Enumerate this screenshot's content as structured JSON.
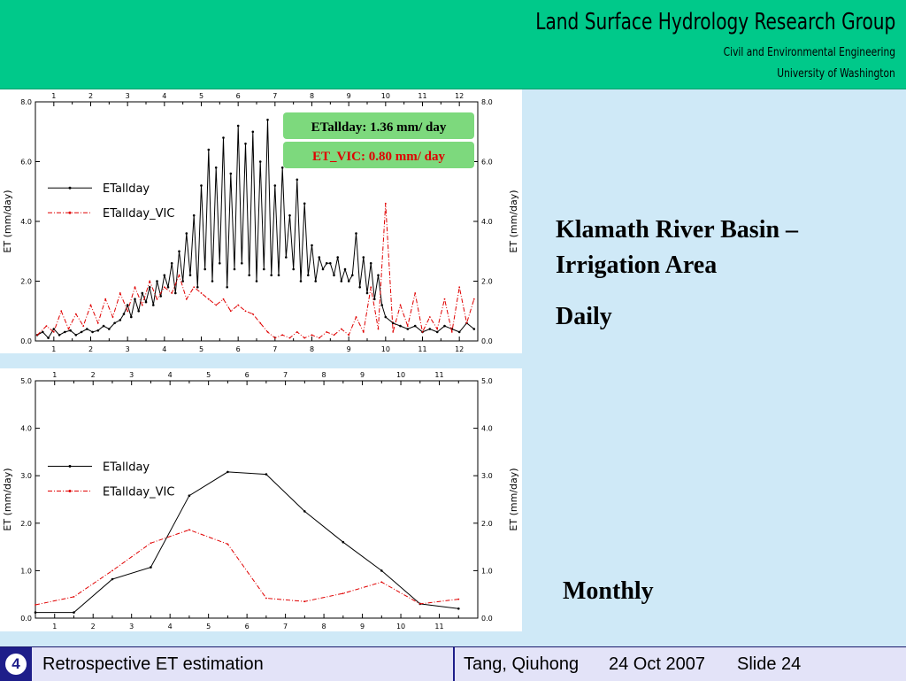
{
  "header": {
    "title": "Land Surface Hydrology Research Group",
    "subtitle1": "Civil and Environmental Engineering",
    "subtitle2": "University of Washington"
  },
  "side": {
    "basin_title": "Klamath River Basin – Irrigation Area",
    "daily_label": "Daily",
    "monthly_label": "Monthly"
  },
  "annotations": {
    "etallday": "ETallday: 1.36 mm/ day",
    "et_vic": "ET_VIC: 0.80 mm/ day"
  },
  "footer": {
    "slide_icon": "4",
    "title": "Retrospective ET estimation",
    "author": "Tang, Qiuhong",
    "date": "24 Oct 2007",
    "slide": "Slide 24"
  },
  "colors": {
    "etallday": "#000000",
    "et_vic": "#e00000",
    "header_bg": "#00c98a",
    "page_bg": "#cfe9f7",
    "footer_accent": "#1e1e8a"
  },
  "chart_data": [
    {
      "type": "line",
      "resolution": "daily",
      "ylabel": "ET (mm/day)",
      "ylim": [
        0,
        8
      ],
      "yticks": [
        "0.0",
        "2.0",
        "4.0",
        "6.0",
        "8.0"
      ],
      "xlim": [
        0.5,
        12.5
      ],
      "xticks": [
        "1",
        "2",
        "3",
        "4",
        "5",
        "6",
        "7",
        "8",
        "9",
        "10",
        "11",
        "12"
      ],
      "legend_position": "top-left",
      "series": [
        {
          "name": "ETallday",
          "color": "#000000",
          "style": "solid-dots",
          "x": [
            0.55,
            0.7,
            0.85,
            1.0,
            1.15,
            1.3,
            1.45,
            1.6,
            1.75,
            1.9,
            2.05,
            2.2,
            2.35,
            2.5,
            2.65,
            2.8,
            2.9,
            3.0,
            3.1,
            3.2,
            3.3,
            3.4,
            3.5,
            3.6,
            3.7,
            3.8,
            3.9,
            4.0,
            4.1,
            4.2,
            4.3,
            4.4,
            4.5,
            4.6,
            4.7,
            4.8,
            4.9,
            5.0,
            5.1,
            5.2,
            5.3,
            5.4,
            5.5,
            5.6,
            5.7,
            5.8,
            5.9,
            6.0,
            6.1,
            6.2,
            6.3,
            6.4,
            6.5,
            6.6,
            6.7,
            6.8,
            6.9,
            7.0,
            7.1,
            7.2,
            7.3,
            7.4,
            7.5,
            7.6,
            7.7,
            7.8,
            7.9,
            8.0,
            8.1,
            8.2,
            8.3,
            8.4,
            8.5,
            8.6,
            8.7,
            8.8,
            8.9,
            9.0,
            9.1,
            9.2,
            9.3,
            9.4,
            9.5,
            9.6,
            9.7,
            9.8,
            9.9,
            10.0,
            10.2,
            10.4,
            10.6,
            10.8,
            11.0,
            11.2,
            11.4,
            11.6,
            11.8,
            12.0,
            12.2,
            12.4
          ],
          "values": [
            0.2,
            0.3,
            0.1,
            0.4,
            0.2,
            0.3,
            0.35,
            0.2,
            0.3,
            0.4,
            0.3,
            0.35,
            0.5,
            0.4,
            0.6,
            0.7,
            0.9,
            1.2,
            0.8,
            1.4,
            1.0,
            1.6,
            1.3,
            1.8,
            1.2,
            2.0,
            1.5,
            2.2,
            1.8,
            2.6,
            1.6,
            3.0,
            2.0,
            3.6,
            2.2,
            4.2,
            1.8,
            5.2,
            2.4,
            6.4,
            2.0,
            5.8,
            2.6,
            6.8,
            1.8,
            5.6,
            2.4,
            7.2,
            2.6,
            6.6,
            2.2,
            7.0,
            2.0,
            6.0,
            2.4,
            7.4,
            2.2,
            5.2,
            2.2,
            5.8,
            2.8,
            4.2,
            2.4,
            5.4,
            2.0,
            4.6,
            2.2,
            3.2,
            2.0,
            2.8,
            2.4,
            2.6,
            2.6,
            2.2,
            2.8,
            2.0,
            2.4,
            2.0,
            2.2,
            3.6,
            1.8,
            2.8,
            1.6,
            2.6,
            1.4,
            2.2,
            1.2,
            0.8,
            0.6,
            0.5,
            0.4,
            0.5,
            0.3,
            0.4,
            0.3,
            0.5,
            0.4,
            0.3,
            0.6,
            0.4
          ]
        },
        {
          "name": "ETallday_VIC",
          "color": "#e00000",
          "style": "dash-dot",
          "x": [
            0.55,
            0.8,
            1.0,
            1.2,
            1.4,
            1.6,
            1.8,
            2.0,
            2.2,
            2.4,
            2.6,
            2.8,
            3.0,
            3.2,
            3.4,
            3.6,
            3.8,
            4.0,
            4.2,
            4.4,
            4.6,
            4.8,
            5.0,
            5.2,
            5.4,
            5.6,
            5.8,
            6.0,
            6.2,
            6.4,
            6.6,
            6.8,
            7.0,
            7.2,
            7.4,
            7.6,
            7.8,
            8.0,
            8.2,
            8.4,
            8.6,
            8.8,
            9.0,
            9.2,
            9.4,
            9.6,
            9.8,
            10.0,
            10.2,
            10.4,
            10.6,
            10.8,
            11.0,
            11.2,
            11.4,
            11.6,
            11.8,
            12.0,
            12.2,
            12.4
          ],
          "values": [
            0.2,
            0.5,
            0.3,
            1.0,
            0.4,
            0.9,
            0.5,
            1.2,
            0.6,
            1.4,
            0.8,
            1.6,
            1.0,
            1.8,
            1.2,
            2.0,
            1.4,
            1.8,
            1.6,
            2.2,
            1.4,
            1.8,
            1.6,
            1.4,
            1.2,
            1.4,
            1.0,
            1.2,
            1.0,
            0.9,
            0.6,
            0.3,
            0.1,
            0.2,
            0.1,
            0.3,
            0.1,
            0.2,
            0.1,
            0.3,
            0.2,
            0.4,
            0.2,
            0.8,
            0.3,
            1.8,
            0.4,
            4.6,
            0.3,
            1.2,
            0.5,
            1.6,
            0.3,
            0.8,
            0.4,
            1.4,
            0.3,
            1.8,
            0.6,
            1.4
          ]
        }
      ]
    },
    {
      "type": "line",
      "resolution": "monthly",
      "ylabel": "ET (mm/day)",
      "ylim": [
        0,
        5
      ],
      "yticks": [
        "0.0",
        "1.0",
        "2.0",
        "3.0",
        "4.0",
        "5.0"
      ],
      "xlim": [
        0.5,
        12.0
      ],
      "xticks": [
        "1",
        "2",
        "3",
        "4",
        "5",
        "6",
        "7",
        "8",
        "9",
        "10",
        "11"
      ],
      "legend_position": "top-left",
      "series": [
        {
          "name": "ETallday",
          "color": "#000000",
          "style": "solid-dots",
          "x": [
            0.5,
            1.5,
            2.5,
            3.5,
            4.5,
            5.5,
            6.5,
            7.5,
            8.5,
            9.5,
            10.5,
            11.5
          ],
          "values": [
            0.12,
            0.12,
            0.82,
            1.07,
            2.58,
            3.08,
            3.03,
            2.25,
            1.6,
            1.0,
            0.3,
            0.2
          ]
        },
        {
          "name": "ETallday_VIC",
          "color": "#e00000",
          "style": "dash-dot",
          "x": [
            0.5,
            1.5,
            2.5,
            3.5,
            4.5,
            5.5,
            6.5,
            7.5,
            8.5,
            9.5,
            10.5,
            11.5
          ],
          "values": [
            0.28,
            0.45,
            1.0,
            1.58,
            1.86,
            1.56,
            0.42,
            0.35,
            0.52,
            0.76,
            0.3,
            0.4
          ]
        }
      ]
    }
  ]
}
